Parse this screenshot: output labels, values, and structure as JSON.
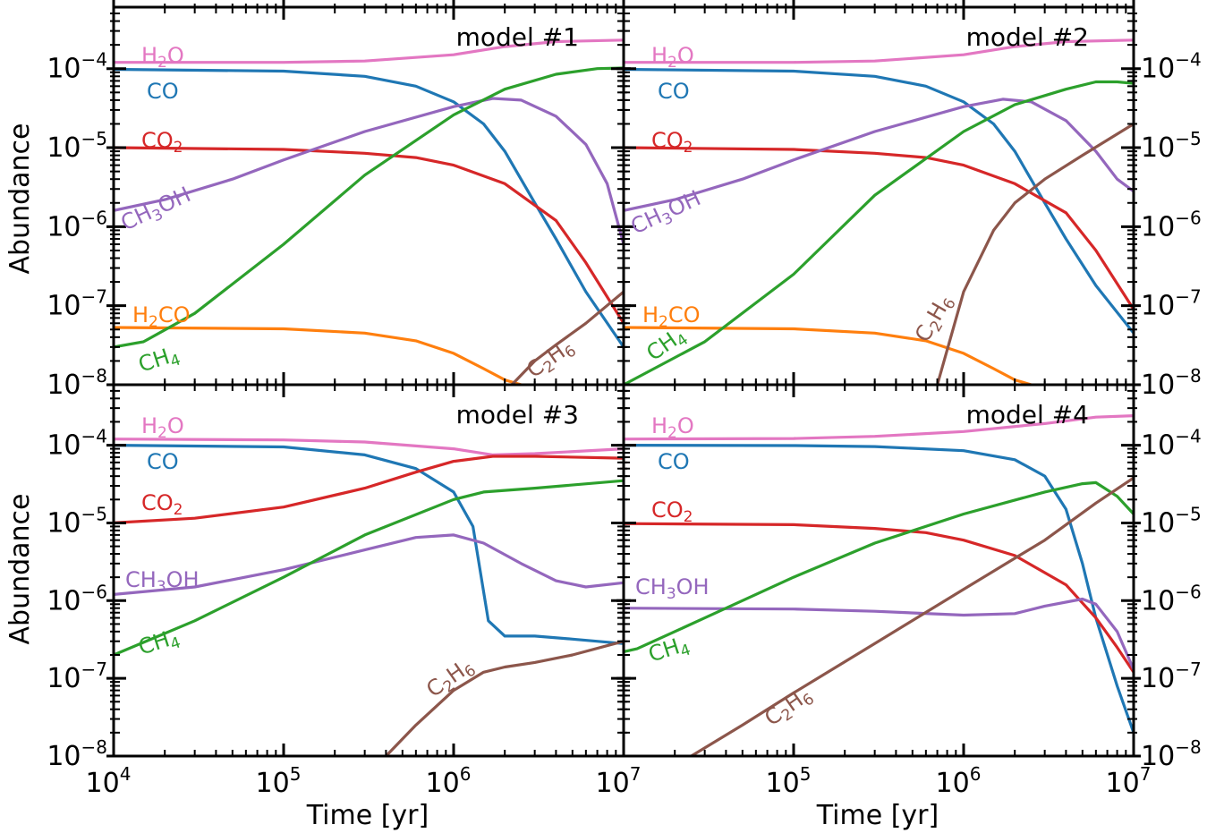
{
  "figure": {
    "ylabel": "Abundance",
    "xlabel": "Time [yr]"
  },
  "colors": {
    "H2O": "#e377c2",
    "CO": "#1f77b4",
    "CO2": "#d62728",
    "CH3OH": "#9467bd",
    "H2CO": "#ff7f0e",
    "CH4": "#2ca02c",
    "C2H6": "#8c564b"
  },
  "chart_data": [
    {
      "type": "line",
      "title": "model #1",
      "xlabel": "",
      "ylabel": "Abundance",
      "xscale": "log",
      "yscale": "log",
      "xlim": [
        10000,
        10000000
      ],
      "ylim": [
        1e-08,
        0.0006
      ],
      "x_ticks": [
        "10^4",
        "10^5",
        "10^6",
        "10^7"
      ],
      "y_ticks": [
        "10^-8",
        "10^-7",
        "10^-6",
        "10^-5",
        "10^-4"
      ],
      "series": [
        {
          "name": "H2O",
          "label": [
            "H",
            "2",
            "O"
          ],
          "x": [
            10000.0,
            100000.0,
            300000.0,
            1000000.0,
            2000000.0,
            4000000.0,
            10000000.0
          ],
          "values": [
            0.00012,
            0.00012,
            0.000125,
            0.00015,
            0.00019,
            0.00022,
            0.00023
          ]
        },
        {
          "name": "CO",
          "label": [
            "C",
            "",
            "O"
          ],
          "x": [
            10000.0,
            100000.0,
            300000.0,
            600000.0,
            1000000.0,
            1500000.0,
            2000000.0,
            3000000.0,
            4000000.0,
            6000000.0,
            10000000.0
          ],
          "values": [
            9.8e-05,
            9.3e-05,
            8e-05,
            6e-05,
            3.8e-05,
            2e-05,
            9e-06,
            2e-06,
            7e-07,
            1.5e-07,
            3e-08
          ]
        },
        {
          "name": "CO2",
          "label": [
            "CO",
            "2",
            ""
          ],
          "x": [
            10000.0,
            100000.0,
            300000.0,
            600000.0,
            1000000.0,
            2000000.0,
            4000000.0,
            6000000.0,
            10000000.0
          ],
          "values": [
            1e-05,
            9.5e-06,
            8.5e-06,
            7.5e-06,
            6e-06,
            3.5e-06,
            1.2e-06,
            3.5e-07,
            6e-08
          ]
        },
        {
          "name": "CH3OH",
          "label": [
            "CH",
            "3",
            "OH"
          ],
          "x": [
            10000.0,
            20000.0,
            50000.0,
            100000.0,
            300000.0,
            1000000.0,
            1700000.0,
            2500000.0,
            4000000.0,
            6000000.0,
            8000000.0,
            10000000.0
          ],
          "values": [
            1.6e-06,
            2.2e-06,
            4e-06,
            7e-06,
            1.6e-05,
            3.3e-05,
            4.2e-05,
            4e-05,
            2.5e-05,
            1.1e-05,
            3.5e-06,
            6e-07
          ]
        },
        {
          "name": "H2CO",
          "label": [
            "H",
            "2",
            "CO"
          ],
          "x": [
            10000.0,
            100000.0,
            300000.0,
            600000.0,
            1000000.0,
            1500000.0,
            2000000.0,
            2500000.0
          ],
          "values": [
            5.3e-08,
            5.1e-08,
            4.5e-08,
            3.6e-08,
            2.5e-08,
            1.6e-08,
            1.15e-08,
            1e-08
          ]
        },
        {
          "name": "CH4",
          "label": [
            "CH",
            "4",
            ""
          ],
          "x": [
            10000.0,
            15000.0,
            30000.0,
            100000.0,
            300000.0,
            1000000.0,
            2000000.0,
            4000000.0,
            7000000.0,
            10000000.0
          ],
          "values": [
            3e-08,
            3.5e-08,
            8e-08,
            6e-07,
            4.5e-06,
            2.6e-05,
            5.5e-05,
            8.5e-05,
            0.0001,
            0.000102
          ]
        },
        {
          "name": "C2H6",
          "label": [
            "C",
            "2",
            "H",
            "6"
          ],
          "x": [
            2200000.0,
            3000000.0,
            4000000.0,
            6000000.0,
            10000000.0
          ],
          "values": [
            1e-08,
            2e-08,
            3.2e-08,
            6e-08,
            1.5e-07
          ]
        }
      ]
    },
    {
      "type": "line",
      "title": "model #2",
      "xlabel": "",
      "ylabel": "",
      "xscale": "log",
      "yscale": "log",
      "xlim": [
        10000,
        10000000
      ],
      "ylim": [
        1e-08,
        0.0006
      ],
      "x_ticks": [
        "10^4",
        "10^5",
        "10^6",
        "10^7"
      ],
      "y_ticks": [
        "10^-8",
        "10^-7",
        "10^-6",
        "10^-5",
        "10^-4"
      ],
      "series": [
        {
          "name": "H2O",
          "label": [
            "H",
            "2",
            "O"
          ],
          "x": [
            10000.0,
            100000.0,
            300000.0,
            1000000.0,
            2000000.0,
            4000000.0,
            10000000.0
          ],
          "values": [
            0.00012,
            0.00012,
            0.000125,
            0.00015,
            0.00019,
            0.00022,
            0.00023
          ]
        },
        {
          "name": "CO",
          "label": [
            "C",
            "",
            "O"
          ],
          "x": [
            10000.0,
            100000.0,
            300000.0,
            600000.0,
            1000000.0,
            1500000.0,
            2000000.0,
            3000000.0,
            4000000.0,
            6000000.0,
            10000000.0
          ],
          "values": [
            9.8e-05,
            9.3e-05,
            8e-05,
            6e-05,
            3.8e-05,
            2e-05,
            9e-06,
            2e-06,
            7e-07,
            1.8e-07,
            4.5e-08
          ]
        },
        {
          "name": "CO2",
          "label": [
            "CO",
            "2",
            ""
          ],
          "x": [
            10000.0,
            100000.0,
            300000.0,
            600000.0,
            1000000.0,
            2000000.0,
            4000000.0,
            6000000.0,
            10000000.0
          ],
          "values": [
            1e-05,
            9.5e-06,
            8.5e-06,
            7.5e-06,
            6e-06,
            3.5e-06,
            1.5e-06,
            5e-07,
            9e-08
          ]
        },
        {
          "name": "CH3OH",
          "label": [
            "CH",
            "3",
            "OH"
          ],
          "x": [
            10000.0,
            20000.0,
            50000.0,
            100000.0,
            300000.0,
            1000000.0,
            1700000.0,
            2500000.0,
            4000000.0,
            6000000.0,
            8000000.0,
            10000000.0
          ],
          "values": [
            1.6e-06,
            2.2e-06,
            4e-06,
            7e-06,
            1.6e-05,
            3.3e-05,
            4.1e-05,
            3.8e-05,
            2.2e-05,
            9e-06,
            4e-06,
            2.8e-06
          ]
        },
        {
          "name": "H2CO",
          "label": [
            "H",
            "2",
            "CO"
          ],
          "x": [
            10000.0,
            100000.0,
            300000.0,
            600000.0,
            1000000.0,
            1500000.0,
            2000000.0,
            2500000.0
          ],
          "values": [
            5.3e-08,
            5.1e-08,
            4.5e-08,
            3.6e-08,
            2.5e-08,
            1.6e-08,
            1.15e-08,
            1e-08
          ]
        },
        {
          "name": "CH4",
          "label": [
            "CH",
            "4",
            ""
          ],
          "x": [
            10000.0,
            30000.0,
            100000.0,
            300000.0,
            1000000.0,
            2000000.0,
            4000000.0,
            6000000.0,
            8000000.0,
            10000000.0
          ],
          "values": [
            1e-08,
            3.5e-08,
            2.5e-07,
            2.5e-06,
            1.6e-05,
            3.5e-05,
            5.5e-05,
            6.8e-05,
            6.8e-05,
            6.5e-05
          ]
        },
        {
          "name": "C2H6",
          "label": [
            "C",
            "2",
            "H",
            "6"
          ],
          "x": [
            700000.0,
            1000000.0,
            1500000.0,
            2000000.0,
            3000000.0,
            5000000.0,
            10000000.0
          ],
          "values": [
            1e-08,
            1.5e-07,
            9e-07,
            2e-06,
            4e-06,
            8e-06,
            2e-05
          ]
        }
      ]
    },
    {
      "type": "line",
      "title": "model #3",
      "xlabel": "Time [yr]",
      "ylabel": "Abundance",
      "xscale": "log",
      "yscale": "log",
      "xlim": [
        10000,
        10000000
      ],
      "ylim": [
        1e-08,
        0.0006
      ],
      "x_ticks": [
        "10^4",
        "10^5",
        "10^6",
        "10^7"
      ],
      "y_ticks": [
        "10^-8",
        "10^-7",
        "10^-6",
        "10^-5",
        "10^-4"
      ],
      "series": [
        {
          "name": "H2O",
          "label": [
            "H",
            "2",
            "O"
          ],
          "x": [
            10000.0,
            100000.0,
            300000.0,
            1000000.0,
            1700000.0,
            3000000.0,
            10000000.0
          ],
          "values": [
            0.00012,
            0.000117,
            0.00011,
            9e-05,
            7.5e-05,
            7.8e-05,
            9e-05
          ]
        },
        {
          "name": "CO",
          "label": [
            "C",
            "",
            "O"
          ],
          "x": [
            10000.0,
            100000.0,
            300000.0,
            600000.0,
            1000000.0,
            1300000.0,
            1600000.0,
            2000000.0,
            3000000.0,
            5000000.0,
            10000000.0
          ],
          "values": [
            0.0001,
            9.5e-05,
            7.5e-05,
            5e-05,
            2.5e-05,
            9e-06,
            5.5e-07,
            3.5e-07,
            3.5e-07,
            3.2e-07,
            2.8e-07
          ]
        },
        {
          "name": "CO2",
          "label": [
            "CO",
            "2",
            ""
          ],
          "x": [
            10000.0,
            30000.0,
            100000.0,
            300000.0,
            600000.0,
            1000000.0,
            1700000.0,
            3000000.0,
            10000000.0
          ],
          "values": [
            1e-05,
            1.15e-05,
            1.6e-05,
            2.8e-05,
            4.5e-05,
            6.2e-05,
            7.2e-05,
            7.2e-05,
            6.8e-05
          ]
        },
        {
          "name": "CH3OH",
          "label": [
            "CH",
            "3",
            "OH"
          ],
          "x": [
            10000.0,
            30000.0,
            100000.0,
            300000.0,
            600000.0,
            1000000.0,
            1500000.0,
            2500000.0,
            4000000.0,
            6000000.0,
            10000000.0
          ],
          "values": [
            1.2e-06,
            1.5e-06,
            2.5e-06,
            4.5e-06,
            6.5e-06,
            7e-06,
            5.5e-06,
            3e-06,
            1.8e-06,
            1.5e-06,
            1.7e-06
          ]
        },
        {
          "name": "CH4",
          "label": [
            "CH",
            "4",
            ""
          ],
          "x": [
            10000.0,
            30000.0,
            100000.0,
            300000.0,
            1000000.0,
            1500000.0,
            3000000.0,
            10000000.0
          ],
          "values": [
            2e-07,
            5.5e-07,
            2e-06,
            7e-06,
            2e-05,
            2.5e-05,
            2.8e-05,
            3.5e-05
          ]
        },
        {
          "name": "C2H6",
          "label": [
            "C",
            "2",
            "H",
            "6"
          ],
          "x": [
            400000.0,
            600000.0,
            1000000.0,
            1500000.0,
            2000000.0,
            3000000.0,
            5000000.0,
            10000000.0
          ],
          "values": [
            1e-08,
            2.5e-08,
            7e-08,
            1.2e-07,
            1.4e-07,
            1.6e-07,
            2e-07,
            3e-07
          ]
        }
      ]
    },
    {
      "type": "line",
      "title": "model #4",
      "xlabel": "Time [yr]",
      "ylabel": "",
      "xscale": "log",
      "yscale": "log",
      "xlim": [
        10000,
        10000000
      ],
      "ylim": [
        1e-08,
        0.0006
      ],
      "x_ticks": [
        "10^4",
        "10^5",
        "10^6",
        "10^7"
      ],
      "y_ticks": [
        "10^-8",
        "10^-7",
        "10^-6",
        "10^-5",
        "10^-4"
      ],
      "series": [
        {
          "name": "H2O",
          "label": [
            "H",
            "2",
            "O"
          ],
          "x": [
            10000.0,
            100000.0,
            300000.0,
            1000000.0,
            3000000.0,
            6000000.0,
            10000000.0
          ],
          "values": [
            0.00012,
            0.000122,
            0.00013,
            0.00015,
            0.00019,
            0.00023,
            0.00024
          ]
        },
        {
          "name": "CO",
          "label": [
            "C",
            "",
            "O"
          ],
          "x": [
            10000.0,
            100000.0,
            300000.0,
            1000000.0,
            2000000.0,
            3000000.0,
            4000000.0,
            5000000.0,
            6000000.0,
            8000000.0,
            10000000.0
          ],
          "values": [
            0.0001,
            9.9e-05,
            9.6e-05,
            8.5e-05,
            6.5e-05,
            4e-05,
            1.5e-05,
            3e-06,
            6e-07,
            8e-08,
            2e-08
          ]
        },
        {
          "name": "CO2",
          "label": [
            "CO",
            "2",
            ""
          ],
          "x": [
            10000.0,
            100000.0,
            300000.0,
            600000.0,
            1000000.0,
            2000000.0,
            4000000.0,
            6000000.0,
            8000000.0,
            10000000.0
          ],
          "values": [
            9.8e-06,
            9.5e-06,
            8.5e-06,
            7.5e-06,
            6e-06,
            3.8e-06,
            1.6e-06,
            6e-07,
            2.5e-07,
            1.2e-07
          ]
        },
        {
          "name": "CH3OH",
          "label": [
            "CH",
            "3",
            "OH"
          ],
          "x": [
            10000.0,
            100000.0,
            300000.0,
            1000000.0,
            2000000.0,
            3000000.0,
            5000000.0,
            6000000.0,
            8000000.0,
            10000000.0
          ],
          "values": [
            8e-07,
            7.8e-07,
            7.3e-07,
            6.5e-07,
            6.8e-07,
            8.5e-07,
            1.05e-06,
            9e-07,
            4e-07,
            1.3e-07
          ]
        },
        {
          "name": "CH4",
          "label": [
            "CH",
            "4",
            ""
          ],
          "x": [
            10000.0,
            12000.0,
            30000.0,
            100000.0,
            300000.0,
            1000000.0,
            3000000.0,
            5000000.0,
            6000000.0,
            8000000.0,
            10000000.0
          ],
          "values": [
            2.2e-07,
            2.4e-07,
            6e-07,
            2e-06,
            5.5e-06,
            1.3e-05,
            2.5e-05,
            3.2e-05,
            3.3e-05,
            2.2e-05,
            1.3e-05
          ]
        },
        {
          "name": "C2H6",
          "label": [
            "C",
            "2",
            "H",
            "6"
          ],
          "x": [
            25000.0,
            50000.0,
            100000.0,
            300000.0,
            1000000.0,
            3000000.0,
            6000000.0,
            10000000.0
          ],
          "values": [
            1e-08,
            2.5e-08,
            6.5e-08,
            2.8e-07,
            1.4e-06,
            6e-06,
            1.8e-05,
            3.8e-05
          ]
        }
      ]
    }
  ]
}
